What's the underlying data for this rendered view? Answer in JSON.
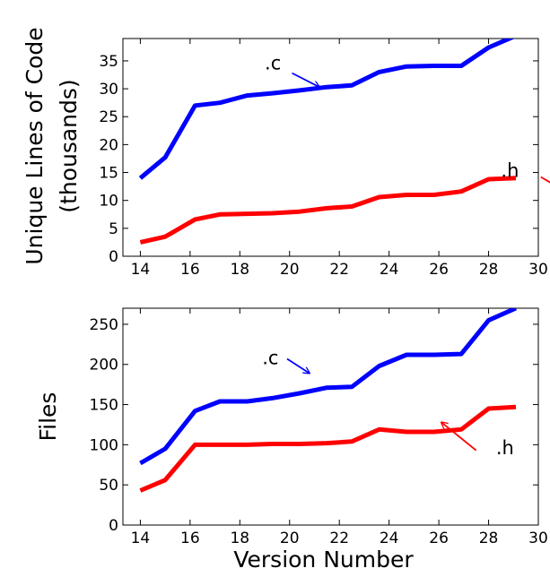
{
  "chart_data": [
    {
      "type": "line",
      "ylabel": "Unique Lines of Code (thousands)",
      "ylabel_lines": [
        "Unique Lines of Code",
        "(thousands)"
      ],
      "xlabel": "",
      "xlim": [
        13.3,
        30
      ],
      "ylim": [
        0,
        39
      ],
      "xticks": [
        14,
        16,
        18,
        20,
        22,
        24,
        26,
        28,
        30
      ],
      "yticks": [
        0,
        5,
        10,
        15,
        20,
        25,
        30,
        35
      ],
      "grid": false,
      "series": [
        {
          "name": ".c",
          "color": "#0000ff",
          "x": [
            14,
            15,
            16.2,
            17.2,
            18.3,
            19.3,
            20.4,
            21.5,
            22.5,
            23.6,
            24.7,
            25.8,
            26.9,
            28,
            29.1
          ],
          "values": [
            14,
            17.7,
            27,
            27.5,
            28.8,
            29.2,
            29.7,
            30.3,
            30.6,
            33,
            34,
            34.1,
            34.1,
            37.4,
            39.5
          ]
        },
        {
          "name": ".h",
          "color": "#ff0000",
          "x": [
            14,
            15,
            16.2,
            17.2,
            18.3,
            19.3,
            20.4,
            21.5,
            22.5,
            23.6,
            24.7,
            25.8,
            26.9,
            28,
            29.1
          ],
          "values": [
            2.5,
            3.5,
            6.6,
            7.5,
            7.6,
            7.7,
            8,
            8.6,
            8.9,
            10.6,
            11,
            11,
            11.6,
            13.8,
            14
          ]
        }
      ],
      "annotations": [
        {
          "text": ".c",
          "color": "#0000ff",
          "label_at": [
            19,
            33.5
          ],
          "arrow_from": [
            20.1,
            32.8
          ],
          "arrow_to": [
            21.2,
            30.3
          ]
        },
        {
          "text": ".h",
          "color": "#ff0000",
          "label_at": [
            28.5,
            14.2
          ],
          "arrow_from": [
            30.1,
            14.2
          ],
          "arrow_to": [
            31.2,
            11.3
          ]
        }
      ]
    },
    {
      "type": "line",
      "ylabel": "Files",
      "ylabel_lines": [
        "Files"
      ],
      "xlabel": "Version Number",
      "xlim": [
        13.3,
        30
      ],
      "ylim": [
        0,
        270
      ],
      "xticks": [
        14,
        16,
        18,
        20,
        22,
        24,
        26,
        28,
        30
      ],
      "yticks": [
        0,
        50,
        100,
        150,
        200,
        250
      ],
      "grid": false,
      "series": [
        {
          "name": ".c",
          "color": "#0000ff",
          "x": [
            14,
            15,
            16.2,
            17.2,
            18.3,
            19.3,
            20.4,
            21.5,
            22.5,
            23.6,
            24.7,
            25.8,
            26.9,
            28,
            29.1
          ],
          "values": [
            77,
            95,
            142,
            154,
            154,
            158,
            164,
            171,
            172,
            198,
            212,
            212,
            213,
            255,
            270
          ]
        },
        {
          "name": ".h",
          "color": "#ff0000",
          "x": [
            14,
            15,
            16.2,
            17.2,
            18.3,
            19.3,
            20.4,
            21.5,
            22.5,
            23.6,
            24.7,
            25.8,
            26.9,
            28,
            29.1
          ],
          "values": [
            43,
            56,
            100,
            100,
            100,
            101,
            101,
            102,
            104,
            119,
            116,
            116,
            119,
            145,
            147
          ]
        }
      ],
      "annotations": [
        {
          "text": ".c",
          "color": "#0000ff",
          "label_at": [
            18.9,
            200
          ],
          "arrow_from": [
            19.9,
            207
          ],
          "arrow_to": [
            20.8,
            189
          ]
        },
        {
          "text": ".h",
          "color": "#ff0000",
          "label_at": [
            28.3,
            88
          ],
          "arrow_from": [
            27.5,
            93
          ],
          "arrow_to": [
            26.1,
            128
          ]
        }
      ]
    }
  ]
}
